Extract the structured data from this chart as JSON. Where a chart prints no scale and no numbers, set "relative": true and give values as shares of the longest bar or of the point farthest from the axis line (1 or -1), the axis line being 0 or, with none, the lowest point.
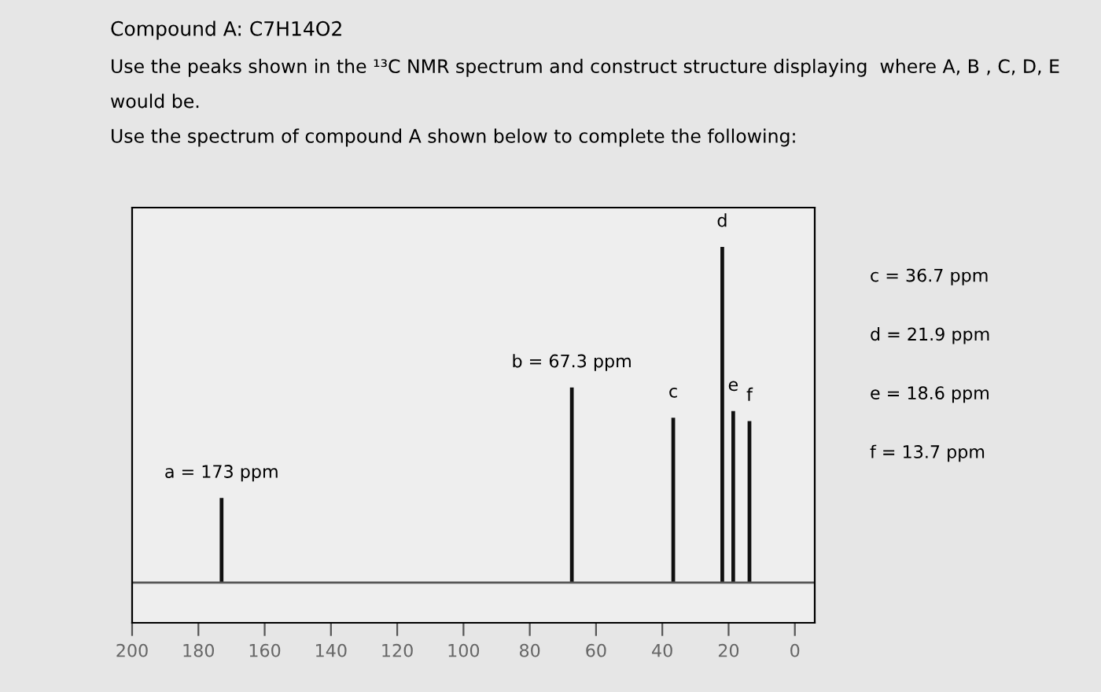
{
  "chart_data": {
    "type": "bar",
    "title": "Compound A: C7H14O2",
    "subtitle": "Use the peaks shown in the ¹³C NMR spectrum and construct structure displaying  where A, B , C, D, E would be.\nUse the spectrum of compound A shown below to complete the following:",
    "x": [
      173,
      67.3,
      36.7,
      21.9,
      18.6,
      13.7
    ],
    "values": [
      0.25,
      0.58,
      0.49,
      1,
      0.51,
      0.48
    ],
    "color": "#111111",
    "relative": true,
    "xlim": [
      200,
      -6
    ],
    "xticks": [
      200,
      180,
      160,
      140,
      120,
      100,
      80,
      60,
      40,
      20,
      0
    ],
    "grid": false,
    "annotations": [
      {
        "text": "a = 173 ppm",
        "x": 173,
        "y": 0.25
      },
      {
        "text": "b = 67.3 ppm",
        "x": 67.3,
        "y": 0.58
      },
      {
        "text": "c",
        "x": 36.7,
        "y": 0.49
      },
      {
        "text": "d",
        "x": 21.9,
        "y": 1
      },
      {
        "text": "e",
        "x": 18.6,
        "y": 0.51
      },
      {
        "text": "f",
        "x": 13.7,
        "y": 0.48
      },
      "c = 36.7 ppm",
      "d = 21.9 ppm",
      "e = 18.6 ppm",
      "f = 13.7 ppm"
    ]
  }
}
